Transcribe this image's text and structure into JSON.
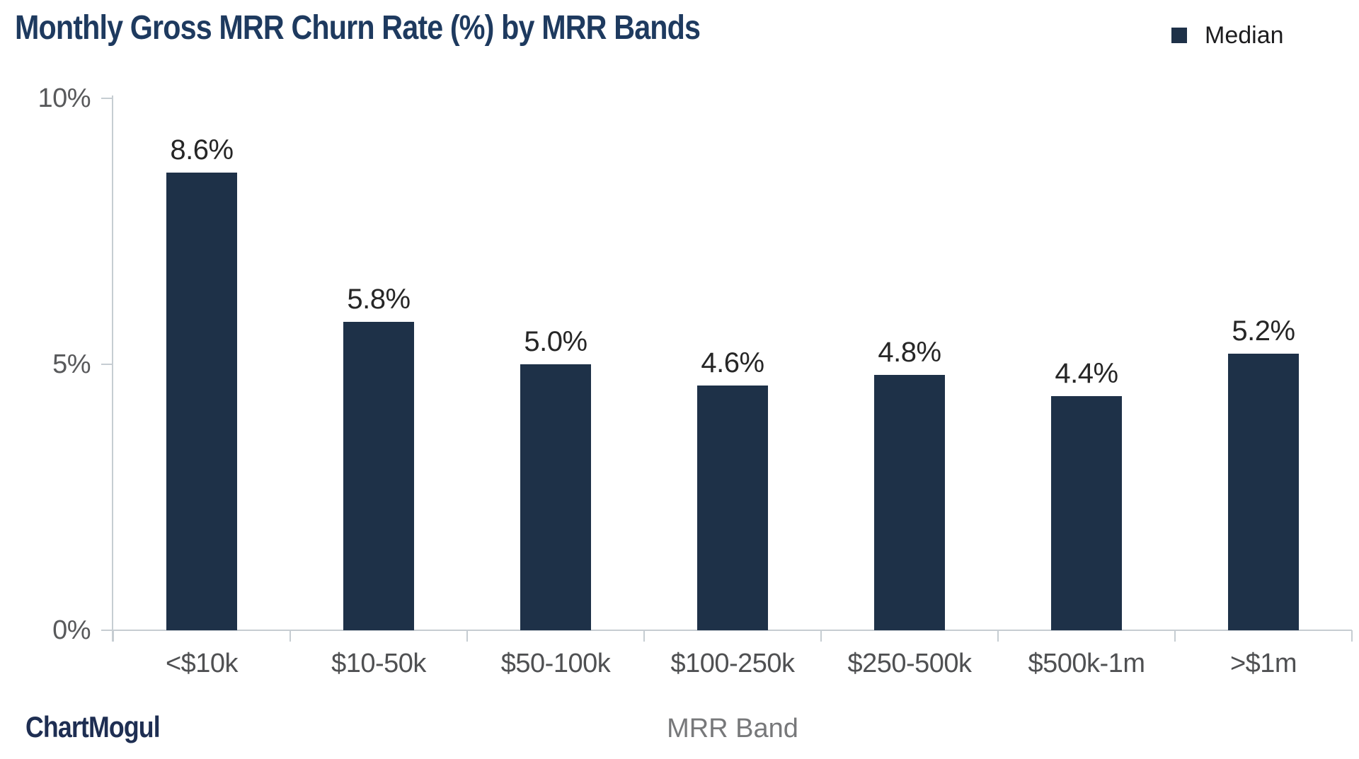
{
  "header": {
    "title": "Monthly Gross MRR Churn Rate (%) by MRR Bands",
    "legend": {
      "label": "Median",
      "swatch_color": "#1e3148"
    }
  },
  "chart_data": {
    "type": "bar",
    "title": "Monthly Gross MRR Churn Rate (%) by MRR Bands",
    "series_name": "Median",
    "categories": [
      "<$10k",
      "$10-50k",
      "$50-100k",
      "$100-250k",
      "$250-500k",
      "$500k-1m",
      ">$1m"
    ],
    "values": [
      8.6,
      5.8,
      5.0,
      4.6,
      4.8,
      4.4,
      5.2
    ],
    "value_labels": [
      "8.6%",
      "5.8%",
      "5.0%",
      "4.6%",
      "4.8%",
      "4.4%",
      "5.2%"
    ],
    "xlabel": "MRR Band",
    "ylabel": "",
    "ylim": [
      0,
      10
    ],
    "yticks": [
      {
        "value": 0,
        "label": "0%"
      },
      {
        "value": 5,
        "label": "5%"
      },
      {
        "value": 10,
        "label": "10%"
      }
    ],
    "grid": false,
    "legend_position": "top-right",
    "bar_color": "#1e3148",
    "axis_color": "#c6cdd2",
    "label_color": "#262626",
    "tick_label_color": "#4f5052"
  },
  "footer": {
    "brand": "ChartMogul"
  }
}
